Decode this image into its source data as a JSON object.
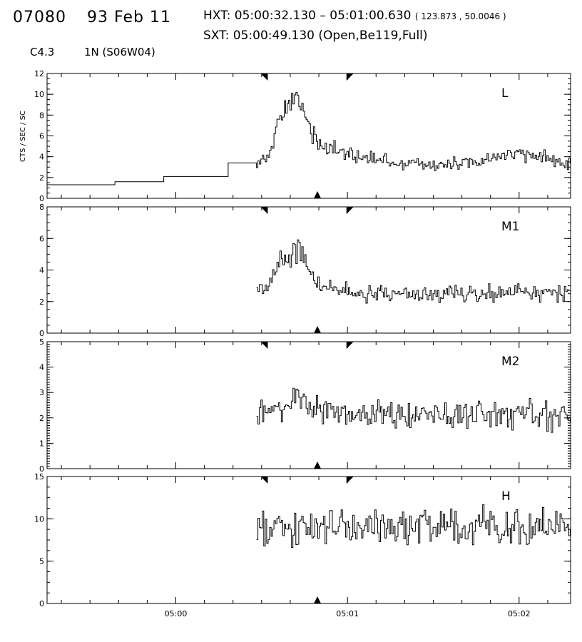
{
  "header": {
    "event_id": "07080",
    "date": "93 Feb 11",
    "hxt_label": "HXT:",
    "hxt_range": "05:00:32.130 – 05:01:00.630",
    "hxt_coords": "( 123.873 , 50.0046 )",
    "sxt_label": "SXT:",
    "sxt_time": "05:00:49.130",
    "sxt_info": "(Open,Be119,Full)",
    "flare_class": "C4.3",
    "flare_location": "1N (S06W04)"
  },
  "chart_data": {
    "type": "line",
    "x_axis": {
      "tick_labels": [
        "05:00",
        "05:01",
        "05:02"
      ],
      "tick_minutes": [
        0,
        1,
        2
      ],
      "range_minutes": [
        -0.75,
        2.3
      ]
    },
    "ylabel": "CTS / SEC / SC",
    "markers": {
      "top_minutes": [
        0.515,
        1.015
      ],
      "bottom_minutes": 0.825
    },
    "panels": [
      {
        "name": "L",
        "ylim": [
          0,
          12
        ],
        "yticks": [
          0,
          2,
          4,
          6,
          8,
          10,
          12
        ],
        "coarse_steps": [
          {
            "x": [
              -0.75,
              -0.355
            ],
            "y": 1.3
          },
          {
            "x": [
              -0.355,
              -0.07
            ],
            "y": 1.6
          },
          {
            "x": [
              -0.07,
              0.305
            ],
            "y": 2.1
          },
          {
            "x": [
              0.305,
              0.47
            ],
            "y": 3.4
          }
        ],
        "fine_start": 0.47,
        "fine_end": 2.3,
        "profile": {
          "t": [
            0.47,
            0.52,
            0.56,
            0.6,
            0.64,
            0.68,
            0.7,
            0.72,
            0.75,
            0.8,
            0.84,
            0.88,
            0.95,
            1.05,
            1.3,
            1.6,
            1.8,
            1.95,
            2.1,
            2.3
          ],
          "y": [
            3.4,
            3.9,
            4.8,
            7.2,
            8.6,
            9.3,
            9.9,
            9.4,
            8.5,
            6.2,
            5.2,
            4.8,
            4.5,
            4.0,
            3.4,
            3.2,
            3.6,
            4.3,
            4.0,
            3.5
          ]
        },
        "noise": 0.28
      },
      {
        "name": "M1",
        "ylim": [
          0,
          8
        ],
        "yticks": [
          0,
          2,
          4,
          6,
          8
        ],
        "fine_start": 0.47,
        "fine_end": 2.3,
        "profile": {
          "t": [
            0.47,
            0.5,
            0.55,
            0.6,
            0.65,
            0.7,
            0.73,
            0.78,
            0.83,
            0.9,
            1.0,
            1.5,
            2.3
          ],
          "y": [
            2.9,
            2.8,
            3.2,
            4.3,
            4.8,
            5.3,
            5.0,
            4.2,
            3.2,
            2.7,
            2.6,
            2.5,
            2.6
          ]
        },
        "noise": 0.28
      },
      {
        "name": "M2",
        "ylim": [
          0,
          5
        ],
        "yticks": [
          0,
          1,
          2,
          3,
          4,
          5
        ],
        "fine_start": 0.47,
        "fine_end": 2.3,
        "profile": {
          "t": [
            0.47,
            0.6,
            0.7,
            0.75,
            0.85,
            1.0,
            2.3
          ],
          "y": [
            2.2,
            2.4,
            2.8,
            2.6,
            2.3,
            2.1,
            2.1
          ]
        },
        "noise": 0.3
      },
      {
        "name": "H",
        "ylim": [
          0,
          15
        ],
        "yticks": [
          0,
          5,
          10,
          15
        ],
        "fine_start": 0.47,
        "fine_end": 2.3,
        "profile": {
          "t": [
            0.47,
            1.0,
            1.5,
            2.0,
            2.3
          ],
          "y": [
            8.6,
            8.8,
            9.0,
            9.1,
            9.0
          ]
        },
        "noise": 0.55
      }
    ]
  }
}
